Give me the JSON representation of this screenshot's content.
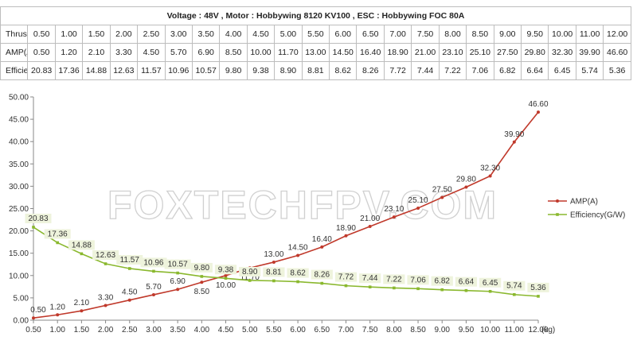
{
  "table": {
    "title": "Voltage : 48V ,   Motor : Hobbywing 8120 KV100 ,    ESC : Hobbywing FOC 80A",
    "rows": [
      {
        "label": "Thrust(kg)",
        "values": [
          "0.50",
          "1.00",
          "1.50",
          "2.00",
          "2.50",
          "3.00",
          "3.50",
          "4.00",
          "4.50",
          "5.00",
          "5.50",
          "6.00",
          "6.50",
          "7.00",
          "7.50",
          "8.00",
          "8.50",
          "9.00",
          "9.50",
          "10.00",
          "11.00",
          "12.00"
        ]
      },
      {
        "label": "AMP(A)",
        "values": [
          "0.50",
          "1.20",
          "2.10",
          "3.30",
          "4.50",
          "5.70",
          "6.90",
          "8.50",
          "10.00",
          "11.70",
          "13.00",
          "14.50",
          "16.40",
          "18.90",
          "21.00",
          "23.10",
          "25.10",
          "27.50",
          "29.80",
          "32.30",
          "39.90",
          "46.60"
        ]
      },
      {
        "label": "Efficiency(G/W)",
        "values": [
          "20.83",
          "17.36",
          "14.88",
          "12.63",
          "11.57",
          "10.96",
          "10.57",
          "9.80",
          "9.38",
          "8.90",
          "8.81",
          "8.62",
          "8.26",
          "7.72",
          "7.44",
          "7.22",
          "7.06",
          "6.82",
          "6.64",
          "6.45",
          "5.74",
          "5.36"
        ]
      }
    ]
  },
  "watermark": "FOXTECHFPV.COM",
  "chart_data": {
    "type": "line",
    "x": [
      0.5,
      1.0,
      1.5,
      2.0,
      2.5,
      3.0,
      3.5,
      4.0,
      4.5,
      5.0,
      5.5,
      6.0,
      6.5,
      7.0,
      7.5,
      8.0,
      8.5,
      9.0,
      9.5,
      10.0,
      11.0,
      12.0
    ],
    "x_tick_labels": [
      "0.50",
      "1.00",
      "1.50",
      "2.00",
      "2.50",
      "3.00",
      "3.50",
      "4.00",
      "4.50",
      "5.00",
      "5.50",
      "6.00",
      "6.50",
      "7.00",
      "7.50",
      "8.00",
      "8.50",
      "9.00",
      "9.50",
      "10.00",
      "11.00",
      "12.00"
    ],
    "x_unit": "(kg)",
    "y_ticks": [
      "0.00",
      "5.00",
      "10.00",
      "15.00",
      "20.00",
      "25.00",
      "30.00",
      "35.00",
      "40.00",
      "45.00",
      "50.00"
    ],
    "ylim": [
      0,
      50
    ],
    "grid": false,
    "legend_position": "right",
    "series": [
      {
        "name": "AMP(A)",
        "color": "#c0392b",
        "values": [
          0.5,
          1.2,
          2.1,
          3.3,
          4.5,
          5.7,
          6.9,
          8.5,
          10.0,
          11.7,
          13.0,
          14.5,
          16.4,
          18.9,
          21.0,
          23.1,
          25.1,
          27.5,
          29.8,
          32.3,
          39.9,
          46.6
        ],
        "labels": [
          "0.50",
          "1.20",
          "2.10",
          "3.30",
          "4.50",
          "5.70",
          "6.90",
          "8.50",
          "10.00",
          "11.70",
          "13.00",
          "14.50",
          "16.40",
          "18.90",
          "21.00",
          "23.10",
          "25.10",
          "27.50",
          "29.80",
          "32.30",
          "39.90",
          "46.60"
        ]
      },
      {
        "name": "Efficiency(G/W)",
        "color": "#8ab82e",
        "values": [
          20.83,
          17.36,
          14.88,
          12.63,
          11.57,
          10.96,
          10.57,
          9.8,
          9.38,
          8.9,
          8.81,
          8.62,
          8.26,
          7.72,
          7.44,
          7.22,
          7.06,
          6.82,
          6.64,
          6.45,
          5.74,
          5.36
        ],
        "labels": [
          "20.83",
          "17.36",
          "14.88",
          "12.63",
          "11.57",
          "10.96",
          "10.57",
          "9.80",
          "9.38",
          "8.90",
          "8.81",
          "8.62",
          "8.26",
          "7.72",
          "7.44",
          "7.22",
          "7.06",
          "6.82",
          "6.64",
          "6.45",
          "5.74",
          "5.36"
        ]
      }
    ]
  }
}
